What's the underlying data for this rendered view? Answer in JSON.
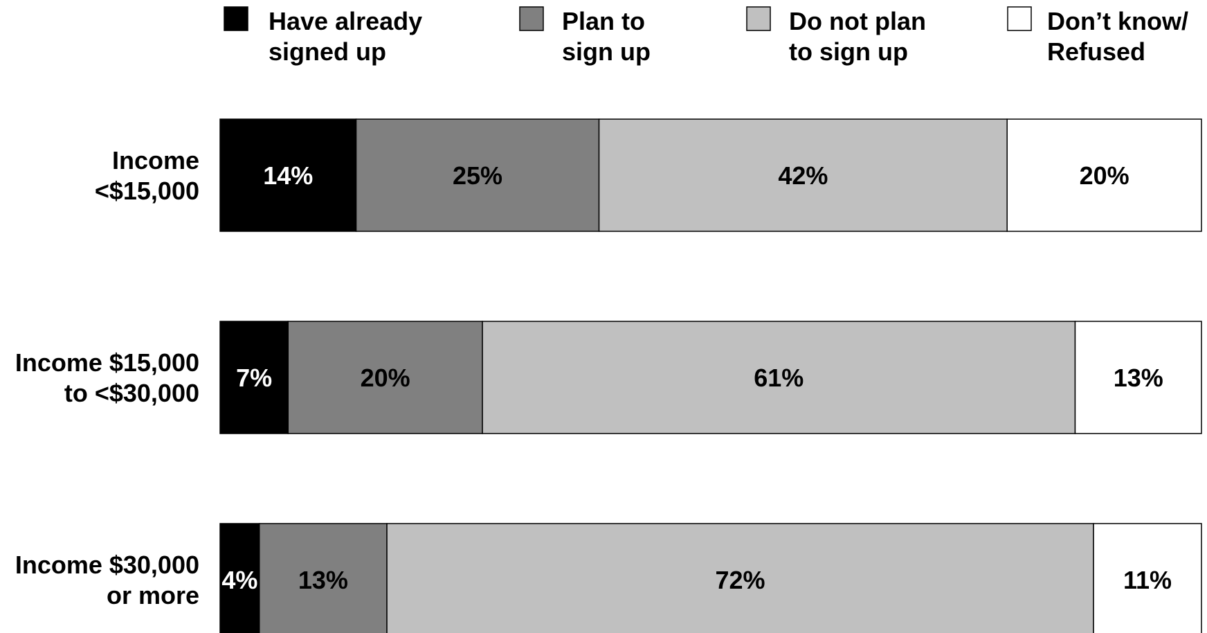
{
  "chart_data": {
    "type": "bar",
    "orientation": "horizontal",
    "stacked": true,
    "title": "",
    "xlabel": "",
    "ylabel": "",
    "grid": false,
    "legend_position": "top",
    "categories": [
      [
        "Income",
        "<$15,000"
      ],
      [
        "Income $15,000",
        "to <$30,000"
      ],
      [
        "Income $30,000",
        "or more"
      ]
    ],
    "series": [
      {
        "name": [
          "Have already",
          "signed up"
        ],
        "color": "#000000",
        "label_color": "#ffffff",
        "values": [
          14,
          7,
          4
        ],
        "labels": [
          "14%",
          "7%",
          "4%"
        ]
      },
      {
        "name": [
          "Plan to",
          "sign up"
        ],
        "color": "#808080",
        "label_color": "#000000",
        "values": [
          25,
          20,
          13
        ],
        "labels": [
          "25%",
          "20%",
          "13%"
        ]
      },
      {
        "name": [
          "Do not plan",
          "to sign up"
        ],
        "color": "#c0c0c0",
        "label_color": "#000000",
        "values": [
          42,
          61,
          72
        ],
        "labels": [
          "42%",
          "61%",
          "72%"
        ]
      },
      {
        "name": [
          "Don’t know/",
          "Refused"
        ],
        "color": "#ffffff",
        "label_color": "#000000",
        "values": [
          20,
          13,
          11
        ],
        "labels": [
          "20%",
          "13%",
          "11%"
        ]
      }
    ]
  }
}
